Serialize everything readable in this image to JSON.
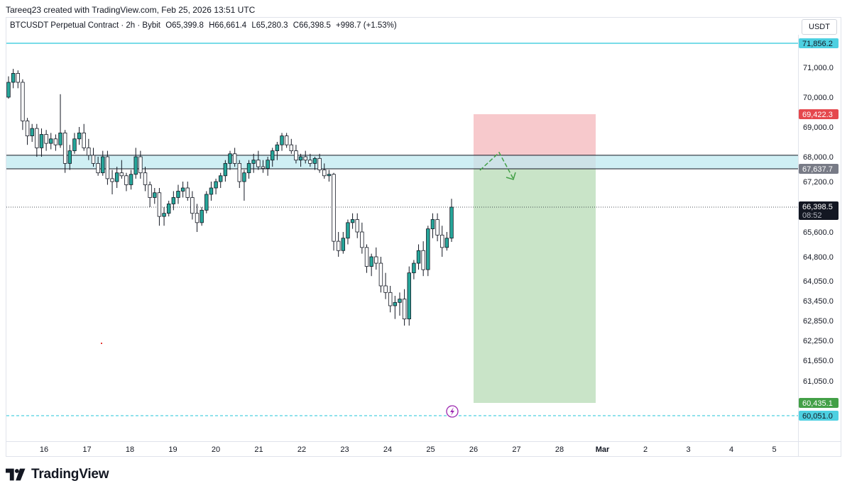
{
  "header": {
    "credit": "Tareeq23 created with TradingView.com, Feb 25, 2026 13:51 UTC"
  },
  "symbol_bar": {
    "symbol": "BTCUSDT Perpetual Contract · 2h · Bybit",
    "open": "O65,399.8",
    "high": "H66,661.4",
    "low": "L65,280.3",
    "close": "C66,398.5",
    "change": "+998.7 (+1.53%)"
  },
  "currency": "USDT",
  "brand": {
    "name": "TradingView"
  },
  "colors": {
    "up_candle": "#26a69a",
    "down_candle": "#ffffff",
    "candle_outline": "#131722",
    "zone_fill": "#bfe9f0",
    "stop_zone": "#f7c9cc",
    "target_zone": "#c9e4c8",
    "cyan_line": "#4dd0e1",
    "red_tag": "#e5484d",
    "green_tag": "#43a047",
    "gray_tag": "#787b86",
    "dark_tag": "#131722"
  },
  "chart_data": {
    "type": "candlestick",
    "y_ticks": [
      "71,000.0",
      "70,000.0",
      "69,000.0",
      "68,000.0",
      "67,200.0",
      "65,600.0",
      "64,800.0",
      "64,050.0",
      "63,450.0",
      "62,850.0",
      "62,250.0",
      "61,650.0",
      "61,050.0"
    ],
    "x_ticks": [
      "16",
      "17",
      "18",
      "19",
      "20",
      "21",
      "22",
      "23",
      "24",
      "25",
      "26",
      "27",
      "28",
      "Mar",
      "2",
      "3",
      "4",
      "5"
    ],
    "price_tags": [
      {
        "label": "71,856.2",
        "kind": "cyan",
        "value": 71856.2
      },
      {
        "label": "69,422.3",
        "kind": "red",
        "value": 69422.3
      },
      {
        "label": "67,637.7",
        "kind": "gray",
        "value": 67637.7
      },
      {
        "label": "66,398.5",
        "kind": "dark",
        "value": 66398.5,
        "sub": "08:52"
      },
      {
        "label": "60,435.1",
        "kind": "green",
        "value": 60435.1
      },
      {
        "label": "60,051.0",
        "kind": "cyan",
        "value": 60051.0
      }
    ],
    "zone": {
      "high": 68050,
      "low": 67637.7
    },
    "position": {
      "entry": 67637.7,
      "stop": 69422.3,
      "target": 60435.1,
      "start_day": 26.0,
      "end_day": 28.85
    },
    "horizontal_lines": [
      71856.2,
      60051.0
    ],
    "current_price": 66398.5,
    "candles": [
      [
        70000,
        70700,
        69950,
        70500
      ],
      [
        70500,
        70950,
        70300,
        70800
      ],
      [
        70800,
        70900,
        70300,
        70500
      ],
      [
        70500,
        70600,
        68900,
        69200
      ],
      [
        69200,
        69300,
        68400,
        68700
      ],
      [
        68700,
        69100,
        68500,
        68950
      ],
      [
        68950,
        69100,
        68000,
        68300
      ],
      [
        68300,
        68950,
        68000,
        68750
      ],
      [
        68750,
        68900,
        68200,
        68450
      ],
      [
        68450,
        68800,
        68250,
        68600
      ],
      [
        68600,
        68750,
        68200,
        68400
      ],
      [
        68400,
        70100,
        68300,
        68800
      ],
      [
        68800,
        68900,
        67500,
        67800
      ],
      [
        67800,
        68400,
        67600,
        68200
      ],
      [
        68200,
        68800,
        68100,
        68600
      ],
      [
        68600,
        69000,
        68400,
        68800
      ],
      [
        68800,
        69100,
        68200,
        68300
      ],
      [
        68300,
        68600,
        67900,
        68050
      ],
      [
        68050,
        68300,
        67700,
        67800
      ],
      [
        67800,
        68000,
        67400,
        67500
      ],
      [
        67500,
        68200,
        67400,
        68000
      ],
      [
        68000,
        68200,
        67100,
        67300
      ],
      [
        67300,
        67600,
        66800,
        67200
      ],
      [
        67200,
        67700,
        67000,
        67500
      ],
      [
        67500,
        67900,
        67300,
        67400
      ],
      [
        67400,
        67500,
        66900,
        67100
      ],
      [
        67100,
        67600,
        66950,
        67450
      ],
      [
        67450,
        68300,
        67300,
        68000
      ],
      [
        68000,
        68200,
        67300,
        67500
      ],
      [
        67500,
        67700,
        66900,
        67100
      ],
      [
        67100,
        67200,
        66400,
        66700
      ],
      [
        66700,
        67000,
        66500,
        66850
      ],
      [
        66850,
        67000,
        65800,
        66100
      ],
      [
        66100,
        66400,
        65800,
        66200
      ],
      [
        66200,
        66600,
        66100,
        66500
      ],
      [
        66500,
        66900,
        66300,
        66700
      ],
      [
        66700,
        67100,
        66500,
        66900
      ],
      [
        66900,
        67200,
        66700,
        67000
      ],
      [
        67000,
        67200,
        66600,
        66700
      ],
      [
        66700,
        66900,
        66000,
        66200
      ],
      [
        66200,
        66500,
        65600,
        65900
      ],
      [
        65900,
        66400,
        65800,
        66300
      ],
      [
        66300,
        66900,
        66200,
        66800
      ],
      [
        66800,
        67200,
        66600,
        67000
      ],
      [
        67000,
        67300,
        66800,
        67200
      ],
      [
        67200,
        67500,
        67000,
        67400
      ],
      [
        67400,
        67900,
        67200,
        67800
      ],
      [
        67800,
        68200,
        67600,
        68100
      ],
      [
        68100,
        68300,
        67700,
        67800
      ],
      [
        67800,
        67900,
        67000,
        67200
      ],
      [
        67200,
        67600,
        66600,
        67500
      ],
      [
        67500,
        67900,
        67300,
        67800
      ],
      [
        67800,
        68100,
        67500,
        67900
      ],
      [
        67900,
        68200,
        67600,
        67700
      ],
      [
        67700,
        67900,
        67500,
        67650
      ],
      [
        67650,
        68000,
        67400,
        67900
      ],
      [
        67900,
        68300,
        67700,
        68200
      ],
      [
        68200,
        68500,
        67900,
        68400
      ],
      [
        68400,
        68800,
        68200,
        68700
      ],
      [
        68700,
        68800,
        68300,
        68400
      ],
      [
        68400,
        68600,
        68100,
        68200
      ],
      [
        68200,
        68400,
        67800,
        67900
      ],
      [
        67900,
        68100,
        67700,
        68000
      ],
      [
        68000,
        68200,
        67800,
        67900
      ],
      [
        67900,
        68100,
        67700,
        67800
      ],
      [
        67800,
        68000,
        67600,
        67950
      ],
      [
        67950,
        68100,
        67500,
        67600
      ],
      [
        67600,
        67800,
        67300,
        67400
      ],
      [
        67400,
        67600,
        67200,
        67450
      ],
      [
        67450,
        67500,
        65000,
        65300
      ],
      [
        65300,
        65600,
        64800,
        65000
      ],
      [
        65000,
        65600,
        64900,
        65400
      ],
      [
        65400,
        66000,
        65200,
        65900
      ],
      [
        65900,
        66200,
        65700,
        66000
      ],
      [
        66000,
        66200,
        65400,
        65600
      ],
      [
        65600,
        65900,
        64900,
        65100
      ],
      [
        65100,
        65200,
        64300,
        64500
      ],
      [
        64500,
        64900,
        64200,
        64800
      ],
      [
        64800,
        65100,
        64400,
        64600
      ],
      [
        64600,
        64800,
        63700,
        63900
      ],
      [
        63900,
        64300,
        63500,
        63700
      ],
      [
        63700,
        63900,
        63100,
        63300
      ],
      [
        63300,
        63600,
        62900,
        63400
      ],
      [
        63400,
        63700,
        63000,
        63500
      ],
      [
        63500,
        63800,
        62700,
        62900
      ],
      [
        62900,
        64500,
        62700,
        64300
      ],
      [
        64300,
        64700,
        64100,
        64600
      ],
      [
        64600,
        65200,
        64400,
        65000
      ],
      [
        65000,
        65300,
        64200,
        64400
      ],
      [
        64400,
        65800,
        64200,
        65700
      ],
      [
        65700,
        66200,
        65400,
        66000
      ],
      [
        66000,
        66200,
        65300,
        65500
      ],
      [
        65500,
        65800,
        64800,
        65100
      ],
      [
        65100,
        65600,
        65000,
        65400
      ],
      [
        65400,
        66661.4,
        65280.3,
        66398.5
      ]
    ]
  }
}
